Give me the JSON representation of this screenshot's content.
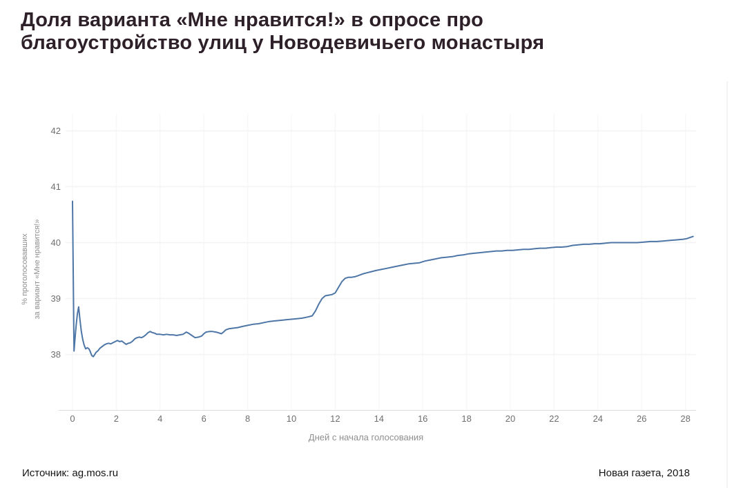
{
  "header": {
    "title_line1": "Доля варианта «Мне нравится!» в опросе про",
    "title_line2": "благоустройство улиц у Новодевичьего монастыря"
  },
  "footer": {
    "source": "Источник: ag.mos.ru",
    "credit": "Новая газета, 2018"
  },
  "chart_data": {
    "type": "line",
    "title": "Доля варианта «Мне нравится!» в опросе про благоустройство улиц у Новодевичьего монастыря",
    "xlabel": "Дней с начала голосования",
    "ylabel_line1": "% проголосовавших",
    "ylabel_line2": "за вариант «Мне нравится!»",
    "xlim": [
      0,
      28.5
    ],
    "ylim": [
      37.0,
      42.3
    ],
    "xticks": [
      0,
      2,
      4,
      6,
      8,
      10,
      12,
      14,
      16,
      18,
      20,
      22,
      24,
      26,
      28
    ],
    "yticks": [
      38,
      39,
      40,
      41,
      42
    ],
    "grid": true,
    "legend": "none",
    "colors": {
      "line": "#4d76a7",
      "grid_h": "#f3f3f3",
      "grid_v": "#f7f7f7",
      "axis": "#dcdcdc",
      "tick_text": "#6e6e6e",
      "title_text": "#2e2029"
    },
    "series": [
      {
        "name": "Доля варианта «Мне нравится!», %",
        "points": [
          [
            0,
            40.74
          ],
          [
            0.07,
            38.06
          ],
          [
            0.1,
            38.22
          ],
          [
            0.16,
            38.5
          ],
          [
            0.22,
            38.72
          ],
          [
            0.28,
            38.85
          ],
          [
            0.34,
            38.62
          ],
          [
            0.4,
            38.42
          ],
          [
            0.47,
            38.26
          ],
          [
            0.53,
            38.17
          ],
          [
            0.6,
            38.1
          ],
          [
            0.68,
            38.12
          ],
          [
            0.75,
            38.1
          ],
          [
            0.8,
            38.06
          ],
          [
            0.88,
            37.98
          ],
          [
            0.95,
            37.96
          ],
          [
            1.0,
            37.99
          ],
          [
            1.08,
            38.04
          ],
          [
            1.15,
            38.06
          ],
          [
            1.25,
            38.11
          ],
          [
            1.35,
            38.14
          ],
          [
            1.45,
            38.17
          ],
          [
            1.55,
            38.19
          ],
          [
            1.65,
            38.2
          ],
          [
            1.75,
            38.19
          ],
          [
            1.85,
            38.21
          ],
          [
            1.95,
            38.23
          ],
          [
            2.05,
            38.25
          ],
          [
            2.15,
            38.23
          ],
          [
            2.25,
            38.24
          ],
          [
            2.35,
            38.21
          ],
          [
            2.45,
            38.18
          ],
          [
            2.55,
            38.2
          ],
          [
            2.65,
            38.21
          ],
          [
            2.75,
            38.24
          ],
          [
            2.85,
            38.28
          ],
          [
            2.95,
            38.3
          ],
          [
            3.05,
            38.31
          ],
          [
            3.15,
            38.3
          ],
          [
            3.25,
            38.32
          ],
          [
            3.35,
            38.35
          ],
          [
            3.45,
            38.39
          ],
          [
            3.55,
            38.41
          ],
          [
            3.65,
            38.39
          ],
          [
            3.75,
            38.38
          ],
          [
            3.85,
            38.36
          ],
          [
            4.0,
            38.36
          ],
          [
            4.15,
            38.35
          ],
          [
            4.3,
            38.36
          ],
          [
            4.45,
            38.35
          ],
          [
            4.6,
            38.35
          ],
          [
            4.75,
            38.34
          ],
          [
            4.9,
            38.35
          ],
          [
            5.05,
            38.36
          ],
          [
            5.2,
            38.4
          ],
          [
            5.3,
            38.38
          ],
          [
            5.45,
            38.34
          ],
          [
            5.6,
            38.3
          ],
          [
            5.75,
            38.31
          ],
          [
            5.9,
            38.33
          ],
          [
            6.0,
            38.37
          ],
          [
            6.1,
            38.4
          ],
          [
            6.25,
            38.41
          ],
          [
            6.4,
            38.41
          ],
          [
            6.55,
            38.4
          ],
          [
            6.65,
            38.39
          ],
          [
            6.8,
            38.37
          ],
          [
            6.9,
            38.4
          ],
          [
            7.0,
            38.44
          ],
          [
            7.15,
            38.46
          ],
          [
            7.35,
            38.47
          ],
          [
            7.55,
            38.48
          ],
          [
            7.75,
            38.5
          ],
          [
            8.0,
            38.52
          ],
          [
            8.25,
            38.54
          ],
          [
            8.5,
            38.55
          ],
          [
            8.75,
            38.57
          ],
          [
            9.0,
            38.59
          ],
          [
            9.25,
            38.6
          ],
          [
            9.5,
            38.61
          ],
          [
            9.75,
            38.62
          ],
          [
            10.0,
            38.63
          ],
          [
            10.25,
            38.64
          ],
          [
            10.5,
            38.65
          ],
          [
            10.75,
            38.67
          ],
          [
            10.95,
            38.69
          ],
          [
            11.1,
            38.78
          ],
          [
            11.25,
            38.9
          ],
          [
            11.4,
            39.0
          ],
          [
            11.55,
            39.05
          ],
          [
            11.7,
            39.06
          ],
          [
            11.85,
            39.07
          ],
          [
            12.0,
            39.1
          ],
          [
            12.15,
            39.2
          ],
          [
            12.3,
            39.3
          ],
          [
            12.45,
            39.36
          ],
          [
            12.6,
            39.38
          ],
          [
            12.75,
            39.38
          ],
          [
            12.9,
            39.39
          ],
          [
            13.05,
            39.41
          ],
          [
            13.25,
            39.44
          ],
          [
            13.45,
            39.46
          ],
          [
            13.65,
            39.48
          ],
          [
            13.85,
            39.5
          ],
          [
            14.1,
            39.52
          ],
          [
            14.35,
            39.54
          ],
          [
            14.6,
            39.56
          ],
          [
            14.85,
            39.58
          ],
          [
            15.1,
            39.6
          ],
          [
            15.35,
            39.62
          ],
          [
            15.6,
            39.63
          ],
          [
            15.85,
            39.64
          ],
          [
            16.1,
            39.67
          ],
          [
            16.35,
            39.69
          ],
          [
            16.6,
            39.71
          ],
          [
            16.85,
            39.73
          ],
          [
            17.1,
            39.74
          ],
          [
            17.35,
            39.75
          ],
          [
            17.6,
            39.77
          ],
          [
            17.85,
            39.78
          ],
          [
            18.1,
            39.8
          ],
          [
            18.35,
            39.81
          ],
          [
            18.6,
            39.82
          ],
          [
            18.85,
            39.83
          ],
          [
            19.1,
            39.84
          ],
          [
            19.35,
            39.85
          ],
          [
            19.6,
            39.85
          ],
          [
            19.85,
            39.86
          ],
          [
            20.1,
            39.86
          ],
          [
            20.35,
            39.87
          ],
          [
            20.6,
            39.88
          ],
          [
            20.85,
            39.88
          ],
          [
            21.1,
            39.89
          ],
          [
            21.35,
            39.9
          ],
          [
            21.6,
            39.9
          ],
          [
            21.85,
            39.91
          ],
          [
            22.1,
            39.92
          ],
          [
            22.35,
            39.92
          ],
          [
            22.6,
            39.93
          ],
          [
            22.85,
            39.95
          ],
          [
            23.1,
            39.96
          ],
          [
            23.35,
            39.97
          ],
          [
            23.6,
            39.97
          ],
          [
            23.85,
            39.98
          ],
          [
            24.1,
            39.98
          ],
          [
            24.35,
            39.99
          ],
          [
            24.6,
            40.0
          ],
          [
            24.9,
            40.0
          ],
          [
            25.2,
            40.0
          ],
          [
            25.5,
            40.0
          ],
          [
            25.8,
            40.0
          ],
          [
            26.1,
            40.01
          ],
          [
            26.4,
            40.02
          ],
          [
            26.7,
            40.02
          ],
          [
            27.0,
            40.03
          ],
          [
            27.3,
            40.04
          ],
          [
            27.6,
            40.05
          ],
          [
            27.9,
            40.06
          ],
          [
            28.05,
            40.07
          ],
          [
            28.2,
            40.09
          ],
          [
            28.35,
            40.11
          ]
        ]
      }
    ]
  }
}
